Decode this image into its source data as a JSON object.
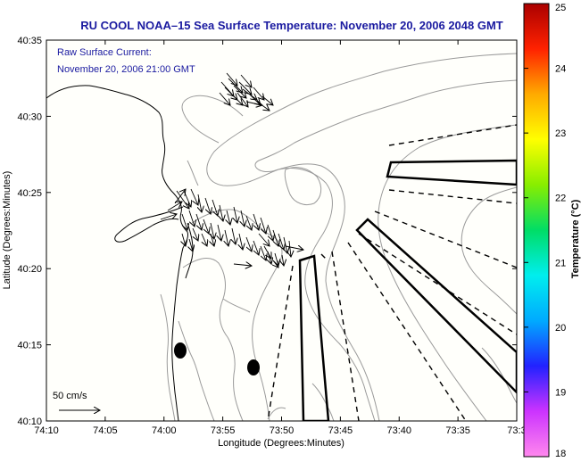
{
  "title": "RU COOL  NOAA–15  Sea Surface Temperature:  November 20, 2006 2048 GMT",
  "annotation": {
    "line1": "Raw Surface Current:",
    "line2": "November 20, 2006 21:00 GMT"
  },
  "scale_label": "50 cm/s",
  "x_axis": {
    "label": "Longitude (Degrees:Minutes)",
    "ticks": [
      "74:10",
      "74:05",
      "74:00",
      "73:55",
      "73:50",
      "73:45",
      "73:40",
      "73:35",
      "73:3"
    ]
  },
  "y_axis": {
    "label": "Latitude (Degrees:Minutes)",
    "ticks": [
      "40:10",
      "40:15",
      "40:20",
      "40:25",
      "40:30",
      "40:35"
    ]
  },
  "colorbar": {
    "label": "Temperature (°C)",
    "ticks": [
      "18",
      "19",
      "20",
      "21",
      "22",
      "23",
      "24",
      "25"
    ],
    "colors": [
      "#ff88ee",
      "#cc33ff",
      "#2222ff",
      "#00aaff",
      "#00eeee",
      "#00dd66",
      "#88ee00",
      "#ffff00",
      "#ffaa00",
      "#ff2200",
      "#aa0000"
    ]
  },
  "colors": {
    "plot_background": "#fffffb",
    "title": "#1a1aa0",
    "contour": "#9a9a9a",
    "coast": "#000000"
  }
}
